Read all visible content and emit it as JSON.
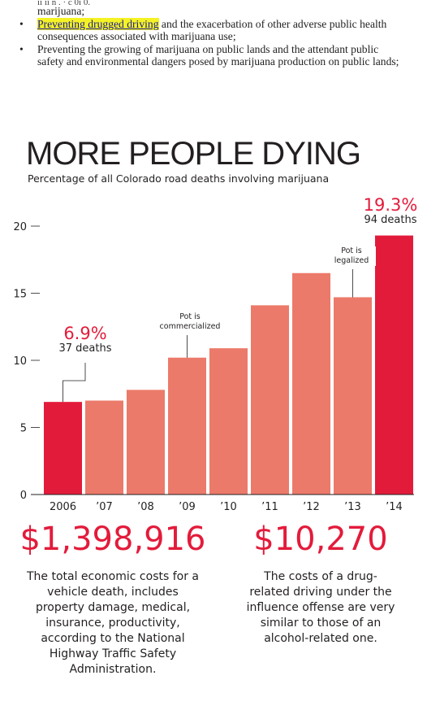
{
  "document": {
    "cut_line": "ii ii n  .        ·  c 0i 0.",
    "line1": "marijuana;",
    "bullet1_highlight": "Preventing drugged driving",
    "bullet1_rest": " and the exacerbation of other adverse public health",
    "bullet1_cont": "consequences associated with marijuana use;",
    "bullet2": "Preventing the growing of marijuana on public lands and the attendant public",
    "bullet2_cont": "safety and environmental dangers posed by marijuana production on public lands;",
    "highlight_color": "#f4f224"
  },
  "chart_data": {
    "type": "bar",
    "title": "MORE PEOPLE DYING",
    "subtitle": "Percentage of all Colorado road deaths involving marijuana",
    "categories": [
      "2006",
      "’07",
      "’08",
      "’09",
      "’10",
      "’11",
      "’12",
      "’13",
      "’14"
    ],
    "values": [
      6.9,
      7.0,
      7.8,
      10.2,
      10.9,
      14.1,
      16.5,
      14.7,
      19.3
    ],
    "highlight_indices": [
      0,
      8
    ],
    "ylim": [
      0,
      20
    ],
    "yticks": [
      0,
      5,
      10,
      15,
      20
    ],
    "colors": {
      "highlight": "#e31b3b",
      "normal": "#ec7a6a"
    },
    "callouts": [
      {
        "pct": "6.9%",
        "deaths": "37 deaths"
      },
      {
        "pct": "19.3%",
        "deaths": "94 deaths"
      }
    ],
    "annotations": [
      {
        "text_line1": "Pot is",
        "text_line2": "commercialized"
      },
      {
        "text_line1": "Pot is",
        "text_line2": "legalized"
      }
    ]
  },
  "stats": [
    {
      "value": "$1,398,916",
      "text": [
        "The total economic costs for a",
        "vehicle death, includes",
        "property damage, medical,",
        "insurance, productivity,",
        "according to the National",
        "Highway Traffic Safety",
        "Administration."
      ]
    },
    {
      "value": "$10,270",
      "text": [
        "The costs of a drug-",
        "related driving under the",
        "influence offense are very",
        "similar to those of an",
        "alcohol-related one."
      ]
    }
  ]
}
